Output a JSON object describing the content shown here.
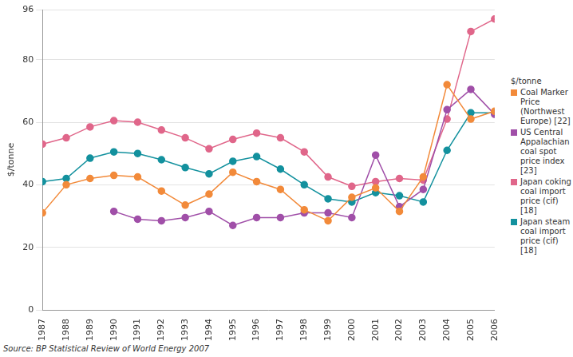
{
  "chart_data": {
    "type": "line",
    "y_label": "$/tonne",
    "legend_title": "$/tonne",
    "source": "Source: BP Statistical Review of World Energy 2007",
    "categories": [
      "1987",
      "1988",
      "1989",
      "1990",
      "1991",
      "1992",
      "1993",
      "1994",
      "1995",
      "1996",
      "1997",
      "1998",
      "1999",
      "2000",
      "2001",
      "2002",
      "2003",
      "2004",
      "2005",
      "2006"
    ],
    "series": [
      {
        "name": "Coal Marker Price (Northwest Europe) [22]",
        "color": "#f28a3a",
        "values": [
          31,
          40,
          42,
          43,
          42.5,
          38,
          33.5,
          37,
          44,
          41,
          38.5,
          32,
          28.5,
          36,
          39,
          31.5,
          42.5,
          72,
          61,
          63.5
        ]
      },
      {
        "name": "US Central Appalachian coal spot price index [23]",
        "color": "#a04fa8",
        "values": [
          null,
          null,
          null,
          31.5,
          29,
          28.5,
          29.5,
          31.5,
          27,
          29.5,
          29.5,
          31,
          31,
          29.5,
          49.5,
          33,
          38.5,
          64,
          70.5,
          62.5
        ]
      },
      {
        "name": "Japan coking coal import price (cif) [18]",
        "color": "#e0668a",
        "values": [
          53,
          55,
          58.5,
          60.5,
          60,
          57.5,
          55,
          51.5,
          54.5,
          56.5,
          55,
          50.5,
          42.5,
          39.5,
          41,
          42,
          41.5,
          61,
          89,
          93
        ]
      },
      {
        "name": "Japan steam coal import price (cif) [18]",
        "color": "#13919e",
        "values": [
          41,
          42,
          48.5,
          50.5,
          50,
          48,
          45.5,
          43.5,
          47.5,
          49,
          45,
          40,
          35.5,
          34.5,
          37.5,
          36.5,
          34.5,
          51,
          63,
          63
        ]
      }
    ],
    "ylim": [
      0,
      96
    ],
    "yticks": [
      0,
      20,
      40,
      60,
      80,
      96
    ],
    "grid": true,
    "legend": "right",
    "marker": "circle",
    "line_style": "solid"
  }
}
